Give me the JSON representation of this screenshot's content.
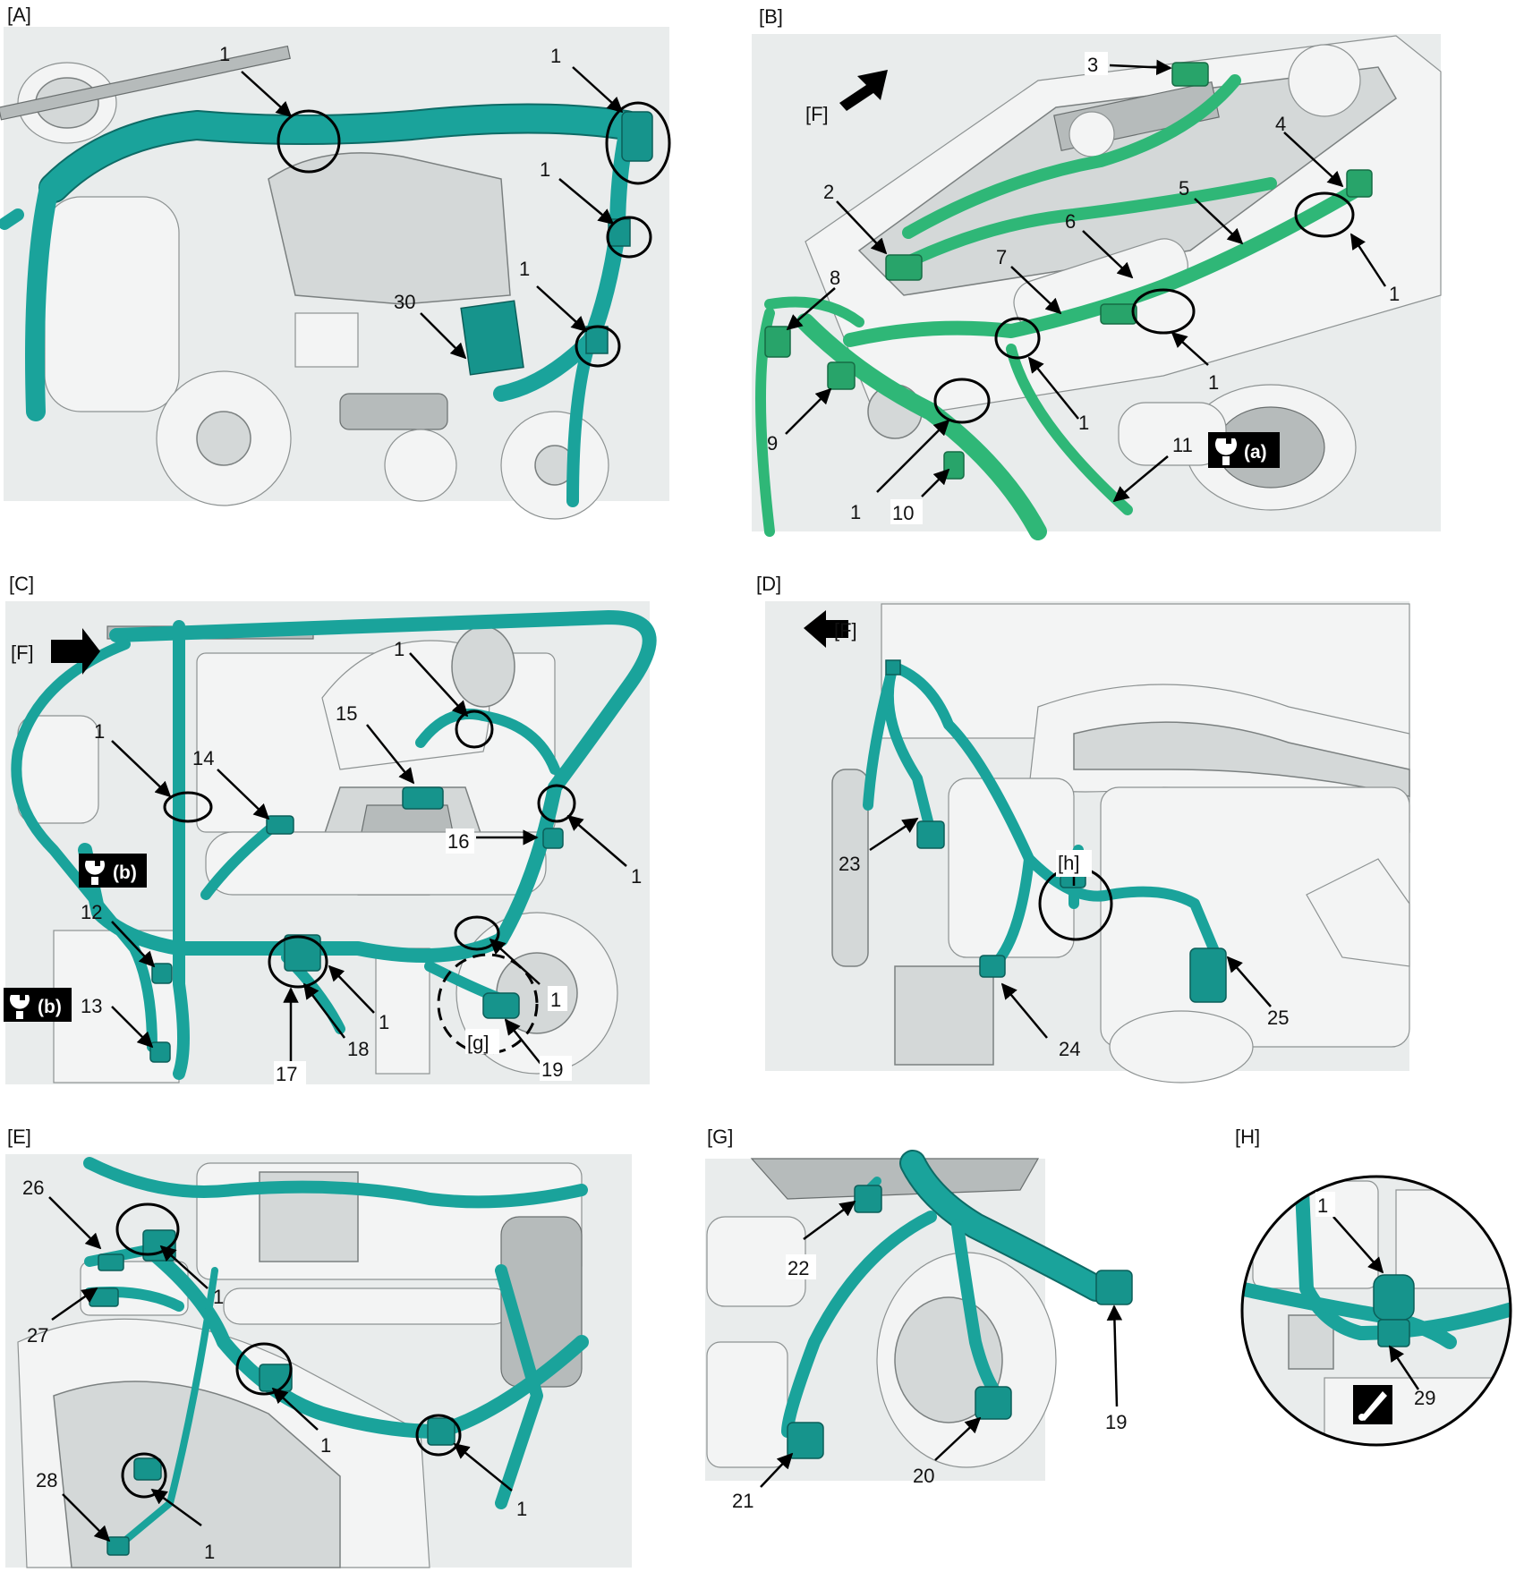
{
  "panels": {
    "A": {
      "label": "[A]"
    },
    "B": {
      "label": "[B]",
      "front_marker": "[F]",
      "tool_badge": "(a)"
    },
    "C": {
      "label": "[C]",
      "front_marker": "[F]",
      "tool_badge_1": "(b)",
      "tool_badge_2": "(b)",
      "detail_ref": "[g]"
    },
    "D": {
      "label": "[D]",
      "front_marker": "[F]",
      "detail_ref": "[h]"
    },
    "E": {
      "label": "[E]"
    },
    "G": {
      "label": "[G]"
    },
    "H": {
      "label": "[H]"
    }
  },
  "callouts": {
    "A": [
      "1",
      "1",
      "1",
      "1",
      "30"
    ],
    "B": [
      "3",
      "2",
      "4",
      "5",
      "6",
      "7",
      "8",
      "9",
      "10",
      "11",
      "1",
      "1",
      "1",
      "1"
    ],
    "C": [
      "1",
      "1",
      "14",
      "15",
      "16",
      "1",
      "12",
      "13",
      "17",
      "18",
      "1",
      "1",
      "19"
    ],
    "D": [
      "23",
      "24",
      "25"
    ],
    "E": [
      "26",
      "27",
      "1",
      "1",
      "28",
      "1",
      "1"
    ],
    "G": [
      "22",
      "21",
      "20",
      "19"
    ],
    "H": [
      "1",
      "29"
    ]
  },
  "colors": {
    "harness_teal": "#1aa39b",
    "harness_green": "#2fb777",
    "marker": "#000000"
  },
  "icons": {
    "front_arrow": "front-arrow-icon",
    "tool": "wrench-icon",
    "clamp_tool": "clamp-tool-icon"
  }
}
